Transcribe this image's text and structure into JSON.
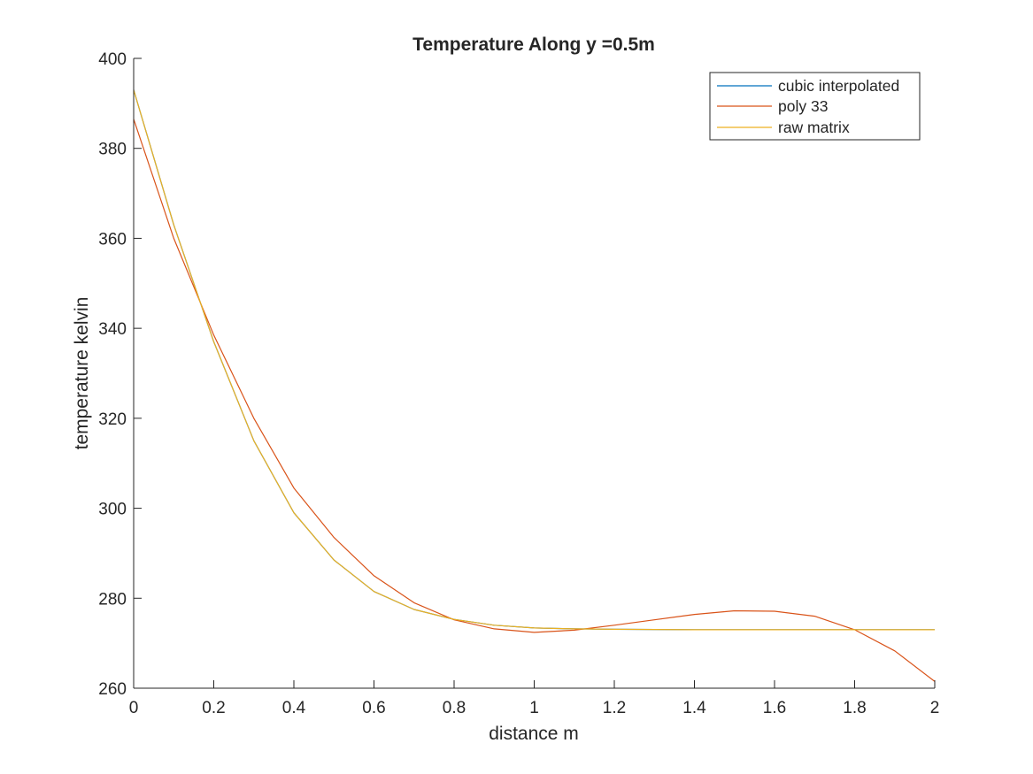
{
  "chart_data": {
    "type": "line",
    "title": "Temperature Along y =0.5m",
    "xlabel": "distance m",
    "ylabel": "temperature kelvin",
    "xlim": [
      0,
      2
    ],
    "ylim": [
      260,
      400
    ],
    "xticks": [
      0,
      0.2,
      0.4,
      0.6,
      0.8,
      1,
      1.2,
      1.4,
      1.6,
      1.8,
      2
    ],
    "xtick_labels": [
      "0",
      "0.2",
      "0.4",
      "0.6",
      "0.8",
      "1",
      "1.2",
      "1.4",
      "1.6",
      "1.8",
      "2"
    ],
    "yticks": [
      260,
      280,
      300,
      320,
      340,
      360,
      380,
      400
    ],
    "ytick_labels": [
      "260",
      "280",
      "300",
      "320",
      "340",
      "360",
      "380",
      "400"
    ],
    "grid": false,
    "legend_position": "top-right",
    "x": [
      0,
      0.1,
      0.2,
      0.3,
      0.4,
      0.5,
      0.6,
      0.7,
      0.8,
      0.9,
      1.0,
      1.1,
      1.2,
      1.3,
      1.4,
      1.5,
      1.6,
      1.7,
      1.8,
      1.9,
      2.0
    ],
    "series": [
      {
        "name": "cubic interpolated",
        "color": "#0072BD",
        "values": [
          393,
          363,
          337,
          315,
          299,
          288.5,
          281.5,
          277.5,
          275.3,
          274,
          273.4,
          273.2,
          273.1,
          273.05,
          273,
          273,
          273,
          273,
          273,
          273,
          273
        ]
      },
      {
        "name": "poly 33",
        "color": "#D95319",
        "values": [
          386.5,
          360,
          338.5,
          320,
          304.5,
          293.5,
          285,
          279,
          275.2,
          273.2,
          272.4,
          272.9,
          274,
          275.2,
          276.4,
          277.2,
          277.1,
          276,
          273,
          268.3,
          261.5
        ]
      },
      {
        "name": "raw matrix",
        "color": "#EDB120",
        "values": [
          393,
          363,
          337,
          315,
          299,
          288.5,
          281.5,
          277.5,
          275.3,
          274,
          273.4,
          273.2,
          273.1,
          273.05,
          273,
          273,
          273,
          273,
          273,
          273,
          273
        ]
      }
    ]
  }
}
